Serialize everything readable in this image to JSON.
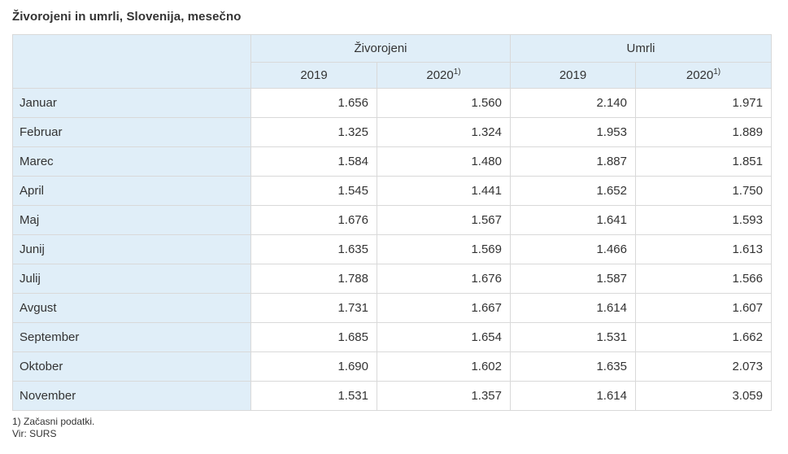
{
  "title": "Živorojeni in umrli, Slovenija, mesečno",
  "table": {
    "column_groups": [
      "Živorojeni",
      "Umrli"
    ],
    "year_headers": [
      {
        "year": "2019",
        "note": ""
      },
      {
        "year": "2020",
        "note": "1)"
      },
      {
        "year": "2019",
        "note": ""
      },
      {
        "year": "2020",
        "note": "1)"
      }
    ],
    "rows": [
      {
        "month": "Januar",
        "values": [
          "1.656",
          "1.560",
          "2.140",
          "1.971"
        ]
      },
      {
        "month": "Februar",
        "values": [
          "1.325",
          "1.324",
          "1.953",
          "1.889"
        ]
      },
      {
        "month": "Marec",
        "values": [
          "1.584",
          "1.480",
          "1.887",
          "1.851"
        ]
      },
      {
        "month": "April",
        "values": [
          "1.545",
          "1.441",
          "1.652",
          "1.750"
        ]
      },
      {
        "month": "Maj",
        "values": [
          "1.676",
          "1.567",
          "1.641",
          "1.593"
        ]
      },
      {
        "month": "Junij",
        "values": [
          "1.635",
          "1.569",
          "1.466",
          "1.613"
        ]
      },
      {
        "month": "Julij",
        "values": [
          "1.788",
          "1.676",
          "1.587",
          "1.566"
        ]
      },
      {
        "month": "Avgust",
        "values": [
          "1.731",
          "1.667",
          "1.614",
          "1.607"
        ]
      },
      {
        "month": "September",
        "values": [
          "1.685",
          "1.654",
          "1.531",
          "1.662"
        ]
      },
      {
        "month": "Oktober",
        "values": [
          "1.690",
          "1.602",
          "1.635",
          "2.073"
        ]
      },
      {
        "month": "November",
        "values": [
          "1.531",
          "1.357",
          "1.614",
          "3.059"
        ]
      }
    ]
  },
  "footnotes": [
    "1) Začasni podatki.",
    "Vir: SURS"
  ],
  "colors": {
    "header_bg": "#e0eef8",
    "border": "#d9d9d9",
    "text": "#333333",
    "page_bg": "#ffffff"
  },
  "chart_data": {
    "type": "table",
    "title": "Živorojeni in umrli, Slovenija, mesečno",
    "column_groups": [
      "Živorojeni",
      "Umrli"
    ],
    "columns": [
      "Živorojeni 2019",
      "Živorojeni 2020 1)",
      "Umrli 2019",
      "Umrli 2020 1)"
    ],
    "categories": [
      "Januar",
      "Februar",
      "Marec",
      "April",
      "Maj",
      "Junij",
      "Julij",
      "Avgust",
      "September",
      "Oktober",
      "November"
    ],
    "series": [
      {
        "name": "Živorojeni 2019",
        "values": [
          1656,
          1325,
          1584,
          1545,
          1676,
          1635,
          1788,
          1731,
          1685,
          1690,
          1531
        ]
      },
      {
        "name": "Živorojeni 2020",
        "values": [
          1560,
          1324,
          1480,
          1441,
          1567,
          1569,
          1676,
          1667,
          1654,
          1602,
          1357
        ]
      },
      {
        "name": "Umrli 2019",
        "values": [
          2140,
          1953,
          1887,
          1652,
          1641,
          1466,
          1587,
          1614,
          1531,
          1635,
          1614
        ]
      },
      {
        "name": "Umrli 2020",
        "values": [
          1971,
          1889,
          1851,
          1750,
          1593,
          1613,
          1566,
          1607,
          1662,
          2073,
          3059
        ]
      }
    ],
    "footnote": "1) Začasni podatki.",
    "source": "Vir: SURS"
  }
}
